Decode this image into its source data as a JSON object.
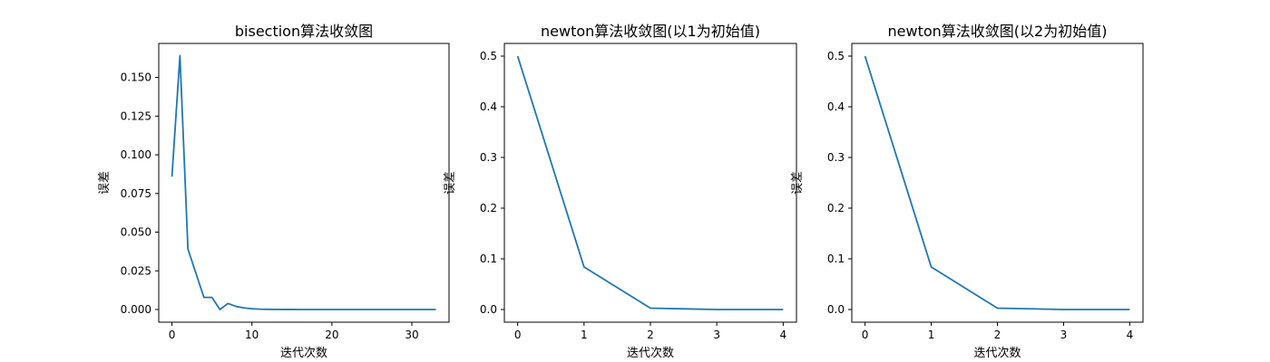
{
  "chart_data": [
    {
      "type": "line",
      "title": "bisection算法收敛图",
      "xlabel": "迭代次数",
      "ylabel": "误差",
      "x": [
        0,
        1,
        2,
        3,
        4,
        5,
        6,
        7,
        8,
        9,
        10,
        11,
        12,
        13,
        14,
        15,
        16,
        17,
        18,
        19,
        20,
        21,
        22,
        23,
        24,
        25,
        26,
        27,
        28,
        29,
        30,
        31,
        32,
        33
      ],
      "series": [
        {
          "values": [
            0.0859,
            0.1641,
            0.0391,
            0.0234,
            0.0078,
            0.0078,
            0.0,
            0.0039,
            0.002,
            0.001,
            0.0005,
            0.0002,
            0.0001,
            5e-05,
            3e-05,
            2e-05,
            1e-05,
            1e-05,
            0,
            0,
            0,
            0,
            0,
            0,
            0,
            0,
            0,
            0,
            0,
            0,
            0,
            0,
            0,
            0
          ],
          "color": "#1f77b4"
        }
      ],
      "xlim": [
        -1.65,
        34.65
      ],
      "ylim": [
        -0.0082,
        0.172
      ],
      "xticks": [
        0,
        10,
        20,
        30
      ],
      "xtick_labels": [
        "0",
        "10",
        "20",
        "30"
      ],
      "yticks": [
        0.0,
        0.025,
        0.05,
        0.075,
        0.1,
        0.125,
        0.15
      ],
      "ytick_labels": [
        "0.000",
        "0.025",
        "0.050",
        "0.075",
        "0.100",
        "0.125",
        "0.150"
      ]
    },
    {
      "type": "line",
      "title": "newton算法收敛图(以1为初始值)",
      "xlabel": "迭代次数",
      "ylabel": "误差",
      "x": [
        0,
        1,
        2,
        3,
        4
      ],
      "series": [
        {
          "values": [
            0.5,
            0.084,
            0.0027,
            0.0,
            0.0
          ],
          "color": "#1f77b4"
        }
      ],
      "xlim": [
        -0.2,
        4.2
      ],
      "ylim": [
        -0.025,
        0.525
      ],
      "xticks": [
        0,
        1,
        2,
        3,
        4
      ],
      "xtick_labels": [
        "0",
        "1",
        "2",
        "3",
        "4"
      ],
      "yticks": [
        0.0,
        0.1,
        0.2,
        0.3,
        0.4,
        0.5
      ],
      "ytick_labels": [
        "0.0",
        "0.1",
        "0.2",
        "0.3",
        "0.4",
        "0.5"
      ]
    },
    {
      "type": "line",
      "title": "newton算法收敛图(以2为初始值)",
      "xlabel": "迭代次数",
      "ylabel": "误差",
      "x": [
        0,
        1,
        2,
        3,
        4
      ],
      "series": [
        {
          "values": [
            0.5,
            0.084,
            0.0027,
            0.0,
            0.0
          ],
          "color": "#1f77b4"
        }
      ],
      "xlim": [
        -0.2,
        4.2
      ],
      "ylim": [
        -0.025,
        0.525
      ],
      "xticks": [
        0,
        1,
        2,
        3,
        4
      ],
      "xtick_labels": [
        "0",
        "1",
        "2",
        "3",
        "4"
      ],
      "yticks": [
        0.0,
        0.1,
        0.2,
        0.3,
        0.4,
        0.5
      ],
      "ytick_labels": [
        "0.0",
        "0.1",
        "0.2",
        "0.3",
        "0.4",
        "0.5"
      ]
    }
  ]
}
